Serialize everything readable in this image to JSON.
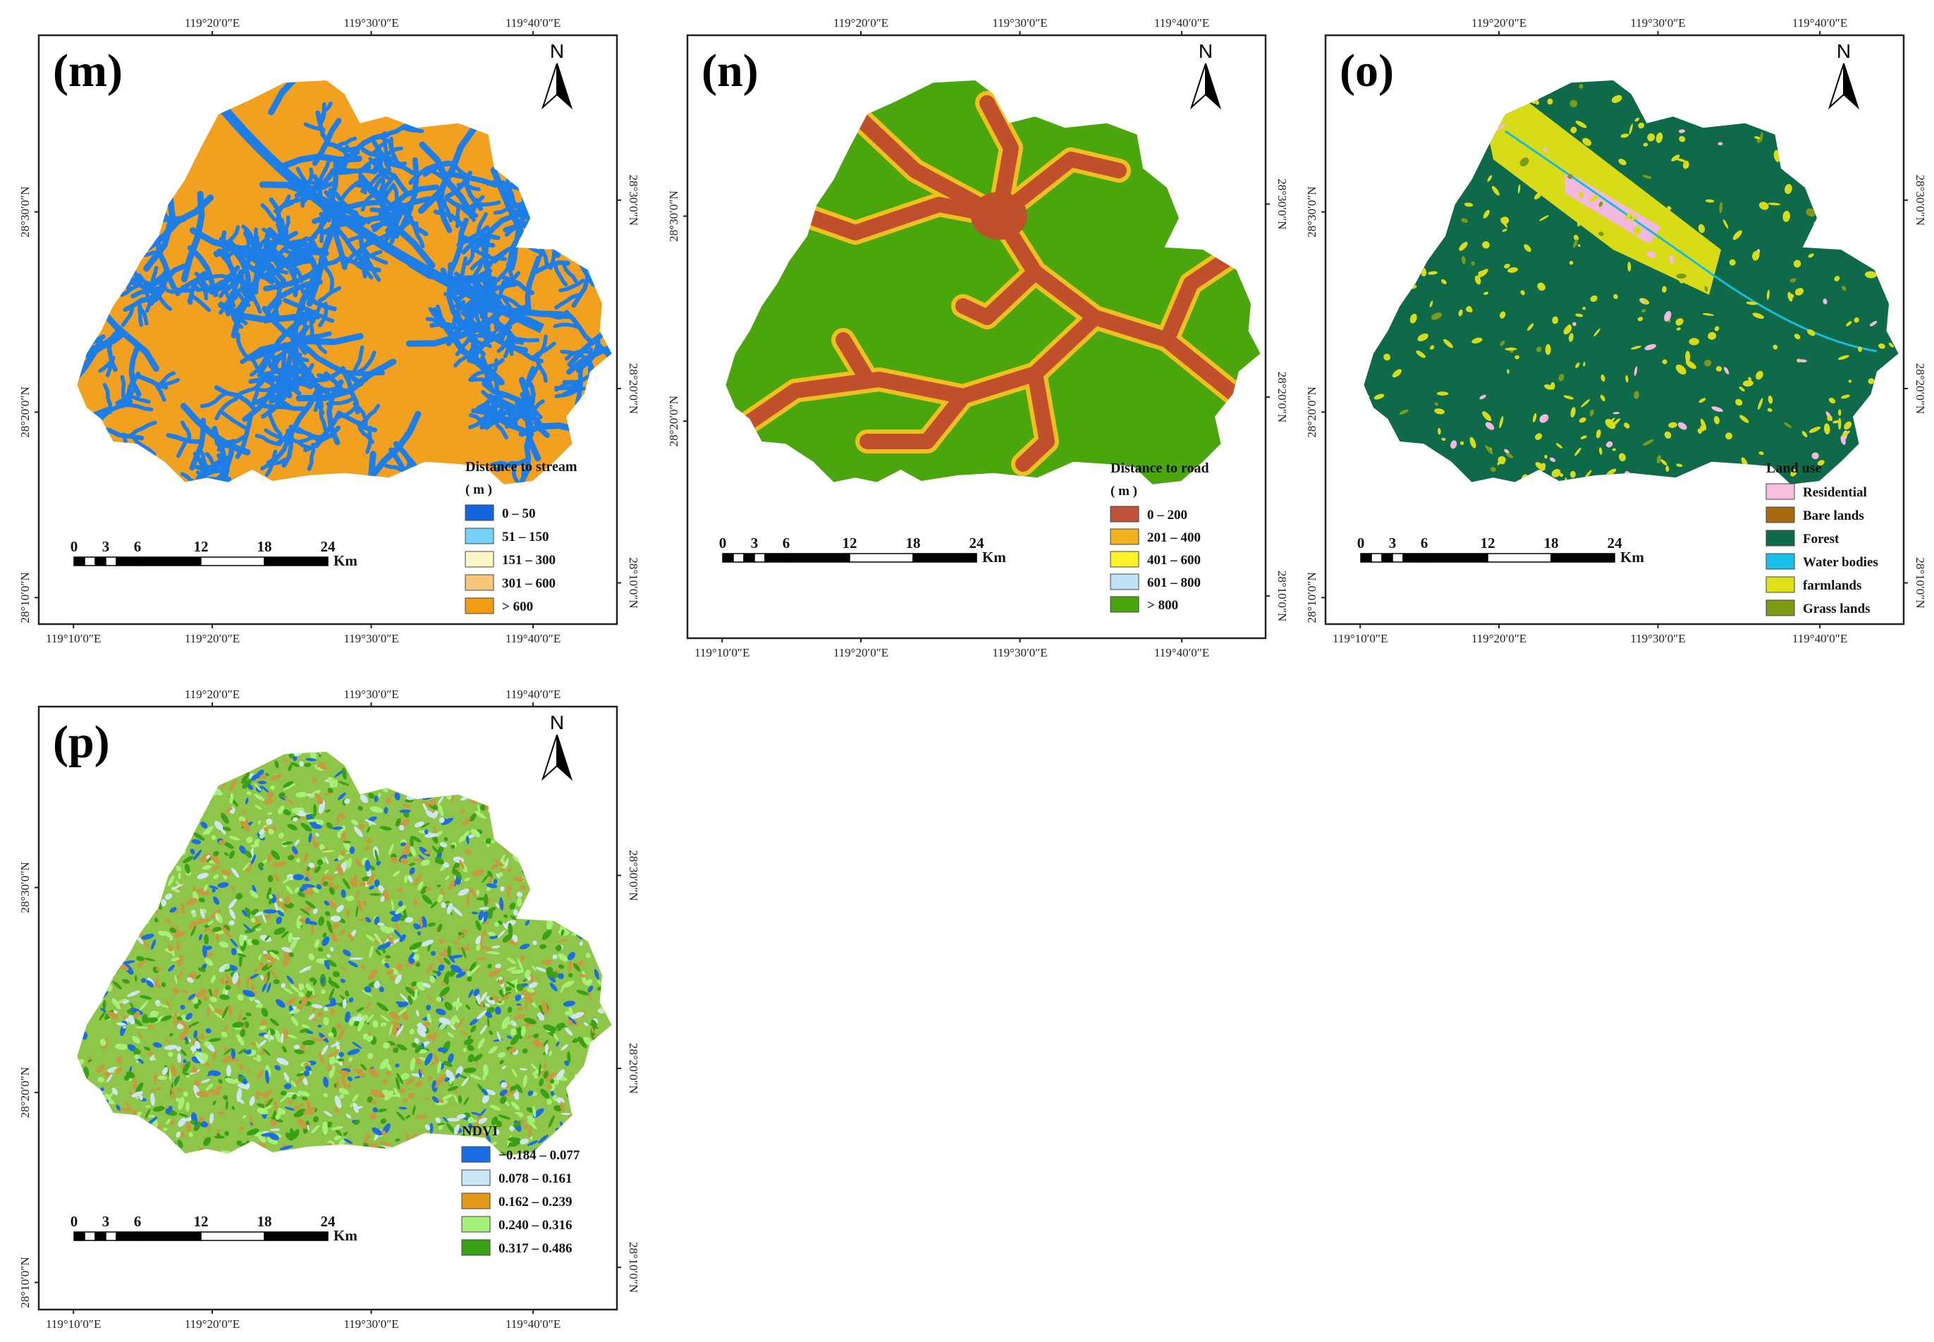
{
  "figure": {
    "panels": [
      {
        "id": "m",
        "label": "(m)",
        "top_ticks": [
          "119°20′0″E",
          "119°30′0″E",
          "119°40′0″E"
        ],
        "bottom_ticks": [
          "119°10′0″E",
          "119°20′0″E",
          "119°30′0″E",
          "119°40′0″E"
        ],
        "left_ticks": [
          "28°30′0″N",
          "28°20′0″N",
          "28°10′0″N"
        ],
        "right_ticks": [
          "28°30′0″N",
          "28°20′0″N",
          "28°10′0″N"
        ],
        "north": "N",
        "scale": {
          "ticks": [
            "0",
            "3",
            "6",
            "12",
            "18",
            "24"
          ],
          "unit": "Km"
        },
        "map_style": "streams",
        "colors": {
          "base": "#f2a020",
          "line": "#1e7ee8",
          "line2": "#6ec8f2"
        },
        "legend": {
          "title": "Distance to stream",
          "unit": "( m )",
          "items": [
            {
              "label": "0 – 50",
              "color": "#1565e0"
            },
            {
              "label": "51 – 150",
              "color": "#74d0f5"
            },
            {
              "label": "151 – 300",
              "color": "#fbf6c6"
            },
            {
              "label": "301 – 600",
              "color": "#f6c77a"
            },
            {
              "label": "> 600",
              "color": "#f39c12"
            }
          ]
        }
      },
      {
        "id": "n",
        "label": "(n)",
        "top_ticks": [
          "119°20′0″E",
          "119°30′0″E",
          "119°40′0″E"
        ],
        "bottom_ticks": [
          "119°10′0″E",
          "119°20′0″E",
          "119°30′0″E",
          "119°40′0″E"
        ],
        "left_ticks": [
          "28°30′0″N",
          "28°20′0″N"
        ],
        "right_ticks": [
          "28°30′0″N",
          "28°20′0″N",
          "28°10′0″N"
        ],
        "north": "N",
        "scale": {
          "ticks": [
            "0",
            "3",
            "6",
            "12",
            "18",
            "24"
          ],
          "unit": "Km"
        },
        "map_style": "roads",
        "colors": {
          "base": "#4aa60c",
          "halo": "#f0c020",
          "line": "#c0502c"
        },
        "legend": {
          "title": "Distance to road",
          "unit": "( m )",
          "items": [
            {
              "label": "0 – 200",
              "color": "#c0523a"
            },
            {
              "label": "201 – 400",
              "color": "#f0b21e"
            },
            {
              "label": "401 – 600",
              "color": "#fbf22a"
            },
            {
              "label": "601 – 800",
              "color": "#bfe3f5"
            },
            {
              "label": "> 800",
              "color": "#4aa60c"
            }
          ]
        }
      },
      {
        "id": "o",
        "label": "(o)",
        "top_ticks": [
          "119°20′0″E",
          "119°30′0″E",
          "119°40′0″E"
        ],
        "bottom_ticks": [
          "119°10′0″E",
          "119°20′0″E",
          "119°30′0″E",
          "119°40′0″E"
        ],
        "left_ticks": [
          "28°30′0″N",
          "28°20′0″N",
          "28°10′0″N"
        ],
        "right_ticks": [
          "28°30′0″N",
          "28°20′0″N",
          "28°10′0″N"
        ],
        "north": "N",
        "scale": {
          "ticks": [
            "0",
            "3",
            "6",
            "12",
            "18",
            "24"
          ],
          "unit": "Km"
        },
        "map_style": "landuse",
        "colors": {
          "base": "#0f6a4a",
          "farm": "#d8dc18",
          "res": "#f3b8de",
          "water": "#18bcd8",
          "grass": "#7c9a16"
        },
        "legend": {
          "title": "Land use",
          "unit": "",
          "items": [
            {
              "label": "Residential",
              "color": "#f6bfe0"
            },
            {
              "label": "Bare lands",
              "color": "#a86a10"
            },
            {
              "label": "Forest",
              "color": "#0f6a4a"
            },
            {
              "label": "Water bodies",
              "color": "#16c0e8"
            },
            {
              "label": "farmlands",
              "color": "#e0e018"
            },
            {
              "label": "Grass lands",
              "color": "#7c9a16"
            }
          ]
        }
      },
      {
        "id": "p",
        "label": "(p)",
        "top_ticks": [
          "119°20′0″E",
          "119°30′0″E",
          "119°40′0″E"
        ],
        "bottom_ticks": [
          "119°10′0″E",
          "119°20′0″E",
          "119°30′0″E",
          "119°40′0″E"
        ],
        "left_ticks": [
          "28°30′0″N",
          "28°20′0″N",
          "28°10′0″N"
        ],
        "right_ticks": [
          "28°30′0″N",
          "28°20′0″N",
          "28°10′0″N"
        ],
        "north": "N",
        "scale": {
          "ticks": [
            "0",
            "3",
            "6",
            "12",
            "18",
            "24"
          ],
          "unit": "Km"
        },
        "map_style": "ndvi",
        "colors": {
          "base": "#8ec64a",
          "c1": "#1a6ee0",
          "c2": "#cfe6f2",
          "c3": "#c89a40",
          "c4": "#a6f07a",
          "c5": "#3aa018"
        },
        "legend": {
          "title": "NDVI",
          "unit": "",
          "items": [
            {
              "label": "−0.184 – 0.077",
              "color": "#1a6ee8"
            },
            {
              "label": "0.078 – 0.161",
              "color": "#c8e6f5"
            },
            {
              "label": "0.162 – 0.239",
              "color": "#e09a18"
            },
            {
              "label": "0.240 – 0.316",
              "color": "#a6f07a"
            },
            {
              "label": "0.317 – 0.486",
              "color": "#3aa018"
            }
          ]
        }
      }
    ]
  }
}
